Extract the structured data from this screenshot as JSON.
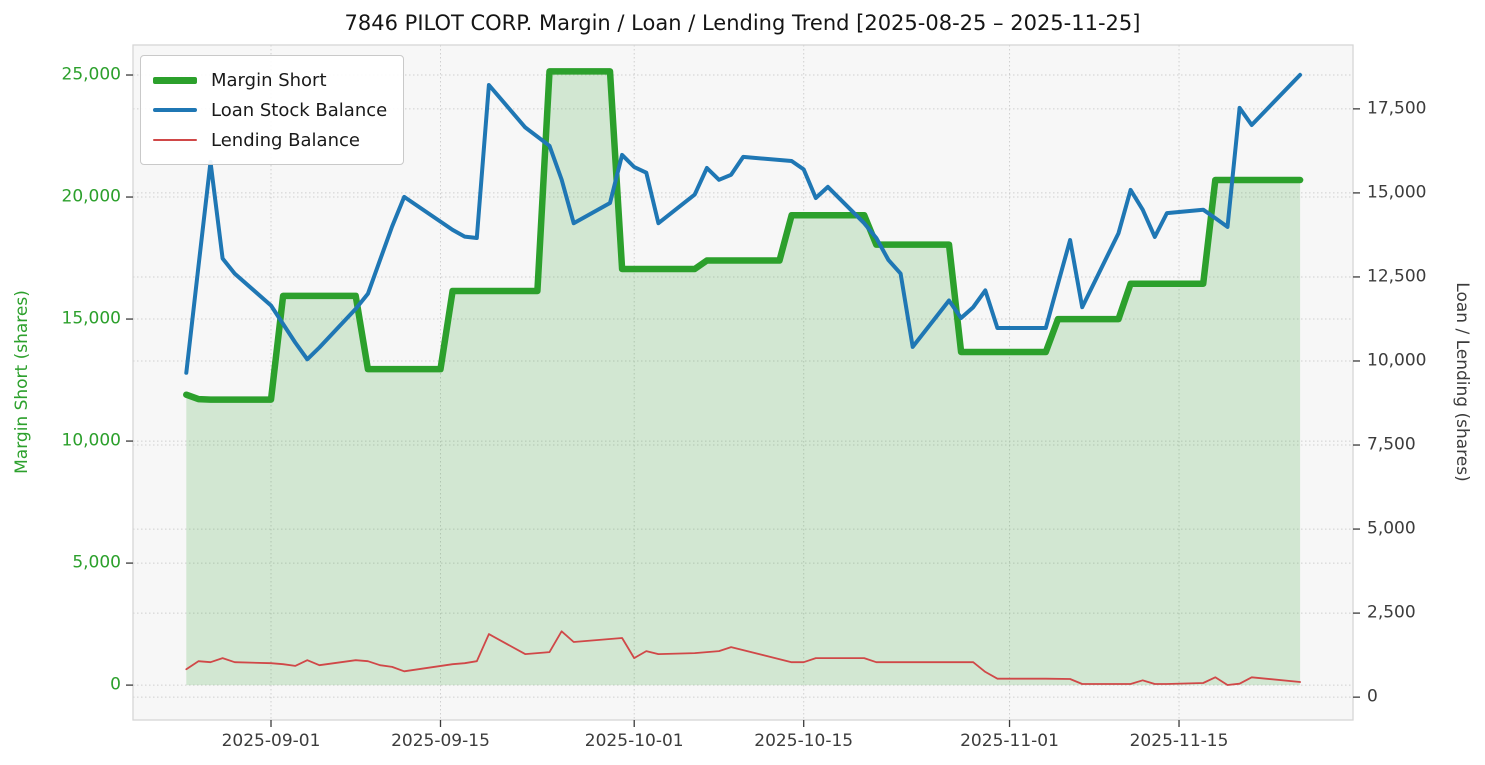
{
  "header": {
    "title": "7846 PILOT CORP. Margin / Loan / Lending Trend [2025-08-25 – 2025-11-25]"
  },
  "legend": {
    "items": [
      {
        "label": "Margin Short",
        "color": "#2ca02c",
        "weight": 7
      },
      {
        "label": "Loan Stock Balance",
        "color": "#1f77b4",
        "weight": 4.5
      },
      {
        "label": "Lending Balance",
        "color": "#d04848",
        "weight": 2
      }
    ]
  },
  "left_axis": {
    "label": "Margin Short (shares)",
    "color": "#2ca02c",
    "ticks": [
      0,
      5000,
      10000,
      15000,
      20000,
      25000
    ]
  },
  "right_axis": {
    "label": "Loan / Lending (shares)",
    "color": "#3c3c3c",
    "ticks": [
      0,
      2500,
      5000,
      7500,
      10000,
      12500,
      15000,
      17500
    ]
  },
  "x_axis": {
    "ticks": [
      "2025-09-01",
      "2025-09-15",
      "2025-10-01",
      "2025-10-15",
      "2025-11-01",
      "2025-11-15"
    ]
  },
  "chart_data": {
    "type": "line",
    "title": "7846 PILOT CORP. Margin / Loan / Lending Trend [2025-08-25 – 2025-11-25]",
    "x_range": [
      "2025-08-25",
      "2025-11-25"
    ],
    "left_ylabel": "Margin Short (shares)",
    "right_ylabel": "Loan / Lending (shares)",
    "left_ylim": [
      -1430,
      26230
    ],
    "right_ylim": [
      -680,
      19400
    ],
    "grid": true,
    "legend_position": "upper left",
    "plot_bg": "#f7f7f7",
    "grid_color": "#cfcfcf",
    "series": [
      {
        "name": "Margin Short",
        "axis": "left",
        "style": "step-area",
        "color": "#2ca02c",
        "fill_color": "rgba(44,160,44,0.18)",
        "fill_to": 0,
        "line_width": 6.5,
        "points": [
          [
            "2025-08-25",
            11900
          ],
          [
            "2025-08-26",
            11720
          ],
          [
            "2025-08-27",
            11700
          ],
          [
            "2025-09-01",
            11700
          ],
          [
            "2025-09-02",
            15950
          ],
          [
            "2025-09-08",
            15950
          ],
          [
            "2025-09-09",
            12950
          ],
          [
            "2025-09-15",
            12950
          ],
          [
            "2025-09-16",
            16150
          ],
          [
            "2025-09-23",
            16150
          ],
          [
            "2025-09-24",
            25150
          ],
          [
            "2025-09-29",
            25150
          ],
          [
            "2025-09-30",
            17050
          ],
          [
            "2025-10-06",
            17050
          ],
          [
            "2025-10-07",
            17400
          ],
          [
            "2025-10-13",
            17400
          ],
          [
            "2025-10-14",
            19250
          ],
          [
            "2025-10-20",
            19250
          ],
          [
            "2025-10-21",
            18050
          ],
          [
            "2025-10-27",
            18050
          ],
          [
            "2025-10-28",
            13650
          ],
          [
            "2025-11-04",
            13650
          ],
          [
            "2025-11-05",
            15000
          ],
          [
            "2025-11-10",
            15000
          ],
          [
            "2025-11-11",
            16450
          ],
          [
            "2025-11-17",
            16450
          ],
          [
            "2025-11-18",
            20700
          ],
          [
            "2025-11-25",
            20700
          ]
        ]
      },
      {
        "name": "Loan Stock Balance",
        "axis": "right",
        "style": "line",
        "color": "#1f77b4",
        "line_width": 4,
        "points": [
          [
            "2025-08-25",
            9650
          ],
          [
            "2025-08-26",
            12800
          ],
          [
            "2025-08-27",
            15920
          ],
          [
            "2025-08-28",
            13050
          ],
          [
            "2025-08-29",
            12600
          ],
          [
            "2025-09-01",
            11650
          ],
          [
            "2025-09-02",
            11100
          ],
          [
            "2025-09-03",
            10550
          ],
          [
            "2025-09-04",
            10050
          ],
          [
            "2025-09-05",
            10400
          ],
          [
            "2025-09-08",
            11550
          ],
          [
            "2025-09-09",
            12000
          ],
          [
            "2025-09-10",
            13000
          ],
          [
            "2025-09-11",
            14000
          ],
          [
            "2025-09-12",
            14880
          ],
          [
            "2025-09-16",
            13900
          ],
          [
            "2025-09-17",
            13700
          ],
          [
            "2025-09-18",
            13660
          ],
          [
            "2025-09-19",
            18210
          ],
          [
            "2025-09-22",
            16950
          ],
          [
            "2025-09-24",
            16400
          ],
          [
            "2025-09-25",
            15400
          ],
          [
            "2025-09-26",
            14100
          ],
          [
            "2025-09-29",
            14700
          ],
          [
            "2025-09-30",
            16130
          ],
          [
            "2025-10-01",
            15770
          ],
          [
            "2025-10-02",
            15600
          ],
          [
            "2025-10-03",
            14100
          ],
          [
            "2025-10-06",
            14950
          ],
          [
            "2025-10-07",
            15740
          ],
          [
            "2025-10-08",
            15390
          ],
          [
            "2025-10-09",
            15540
          ],
          [
            "2025-10-10",
            16070
          ],
          [
            "2025-10-14",
            15950
          ],
          [
            "2025-10-15",
            15700
          ],
          [
            "2025-10-16",
            14850
          ],
          [
            "2025-10-17",
            15180
          ],
          [
            "2025-10-20",
            14100
          ],
          [
            "2025-10-21",
            13660
          ],
          [
            "2025-10-22",
            13000
          ],
          [
            "2025-10-23",
            12600
          ],
          [
            "2025-10-24",
            10420
          ],
          [
            "2025-10-27",
            11800
          ],
          [
            "2025-10-28",
            11280
          ],
          [
            "2025-10-29",
            11600
          ],
          [
            "2025-10-30",
            12100
          ],
          [
            "2025-10-31",
            10980
          ],
          [
            "2025-11-04",
            10980
          ],
          [
            "2025-11-05",
            12300
          ],
          [
            "2025-11-06",
            13600
          ],
          [
            "2025-11-07",
            11600
          ],
          [
            "2025-11-10",
            13800
          ],
          [
            "2025-11-11",
            15090
          ],
          [
            "2025-11-12",
            14500
          ],
          [
            "2025-11-13",
            13690
          ],
          [
            "2025-11-14",
            14400
          ],
          [
            "2025-11-17",
            14500
          ],
          [
            "2025-11-18",
            14250
          ],
          [
            "2025-11-19",
            13990
          ],
          [
            "2025-11-20",
            17530
          ],
          [
            "2025-11-21",
            17020
          ],
          [
            "2025-11-25",
            18510
          ]
        ]
      },
      {
        "name": "Lending Balance",
        "axis": "right",
        "style": "line",
        "color": "#d04848",
        "line_width": 1.8,
        "points": [
          [
            "2025-08-25",
            830
          ],
          [
            "2025-08-26",
            1070
          ],
          [
            "2025-08-27",
            1040
          ],
          [
            "2025-08-28",
            1160
          ],
          [
            "2025-08-29",
            1040
          ],
          [
            "2025-09-01",
            1010
          ],
          [
            "2025-09-02",
            980
          ],
          [
            "2025-09-03",
            930
          ],
          [
            "2025-09-04",
            1100
          ],
          [
            "2025-09-05",
            950
          ],
          [
            "2025-09-08",
            1100
          ],
          [
            "2025-09-09",
            1070
          ],
          [
            "2025-09-10",
            950
          ],
          [
            "2025-09-11",
            900
          ],
          [
            "2025-09-12",
            770
          ],
          [
            "2025-09-16",
            980
          ],
          [
            "2025-09-17",
            1010
          ],
          [
            "2025-09-18",
            1070
          ],
          [
            "2025-09-19",
            1875
          ],
          [
            "2025-09-22",
            1280
          ],
          [
            "2025-09-24",
            1340
          ],
          [
            "2025-09-25",
            1960
          ],
          [
            "2025-09-26",
            1640
          ],
          [
            "2025-09-29",
            1730
          ],
          [
            "2025-09-30",
            1760
          ],
          [
            "2025-10-01",
            1160
          ],
          [
            "2025-10-02",
            1370
          ],
          [
            "2025-10-03",
            1280
          ],
          [
            "2025-10-06",
            1310
          ],
          [
            "2025-10-07",
            1340
          ],
          [
            "2025-10-08",
            1370
          ],
          [
            "2025-10-09",
            1490
          ],
          [
            "2025-10-10",
            1400
          ],
          [
            "2025-10-14",
            1040
          ],
          [
            "2025-10-15",
            1040
          ],
          [
            "2025-10-16",
            1160
          ],
          [
            "2025-10-17",
            1160
          ],
          [
            "2025-10-20",
            1160
          ],
          [
            "2025-10-21",
            1040
          ],
          [
            "2025-10-24",
            1040
          ],
          [
            "2025-10-27",
            1040
          ],
          [
            "2025-10-29",
            1040
          ],
          [
            "2025-10-30",
            750
          ],
          [
            "2025-10-31",
            550
          ],
          [
            "2025-11-04",
            550
          ],
          [
            "2025-11-06",
            540
          ],
          [
            "2025-11-07",
            390
          ],
          [
            "2025-11-11",
            390
          ],
          [
            "2025-11-12",
            500
          ],
          [
            "2025-11-13",
            390
          ],
          [
            "2025-11-14",
            390
          ],
          [
            "2025-11-17",
            420
          ],
          [
            "2025-11-18",
            590
          ],
          [
            "2025-11-19",
            360
          ],
          [
            "2025-11-20",
            400
          ],
          [
            "2025-11-21",
            590
          ],
          [
            "2025-11-25",
            450
          ]
        ]
      }
    ]
  }
}
